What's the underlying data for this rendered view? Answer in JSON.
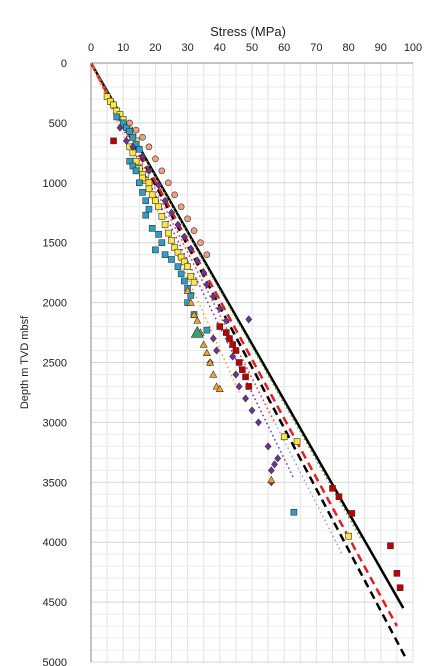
{
  "chart_data": {
    "type": "scatter",
    "xlabel": "Stress (MPa)",
    "ylabel": "Depth m TVD mbsf",
    "xlim": [
      0,
      100
    ],
    "ylim": [
      0,
      5000
    ],
    "y_inverted": true,
    "x_axis_position": "top",
    "x_ticks": [
      "0",
      "10",
      "20",
      "30",
      "40",
      "50",
      "60",
      "70",
      "80",
      "90",
      "100"
    ],
    "y_ticks": [
      "0",
      "500",
      "1000",
      "1500",
      "2000",
      "2500",
      "3000",
      "3500",
      "4000",
      "4500",
      "5000"
    ],
    "grid": true,
    "legend": "none",
    "lines": [
      {
        "style": "solid",
        "color": "#000000",
        "points": [
          [
            0,
            0
          ],
          [
            97,
            4550
          ]
        ]
      },
      {
        "style": "dashed",
        "color": "#000000",
        "points": [
          [
            0,
            0
          ],
          [
            98,
            4980
          ]
        ]
      },
      {
        "style": "dashed",
        "color": "#e02020",
        "points": [
          [
            0,
            0
          ],
          [
            95,
            4700
          ]
        ]
      },
      {
        "style": "dotted",
        "color": "#5aa02c",
        "points": [
          [
            0,
            0
          ],
          [
            84,
            3980
          ]
        ]
      },
      {
        "style": "dotted",
        "color": "#8ca8d8",
        "points": [
          [
            0,
            0
          ],
          [
            78,
            4100
          ]
        ]
      },
      {
        "style": "dotted",
        "color": "#7030a0",
        "points": [
          [
            0,
            0
          ],
          [
            63,
            3470
          ]
        ]
      },
      {
        "style": "dotted",
        "color": "#ff4040",
        "points": [
          [
            0,
            0
          ],
          [
            57,
            3000
          ]
        ]
      },
      {
        "style": "dotted",
        "color": "#f5a020",
        "points": [
          [
            0,
            0
          ],
          [
            46,
            2750
          ]
        ]
      }
    ],
    "series": [
      {
        "marker": "square",
        "color": "#ffe640",
        "points": [
          [
            5,
            280
          ],
          [
            6,
            320
          ],
          [
            7,
            350
          ],
          [
            8,
            400
          ],
          [
            9,
            430
          ],
          [
            10,
            470
          ],
          [
            11,
            520
          ],
          [
            12,
            560
          ],
          [
            13,
            600
          ],
          [
            14,
            650
          ],
          [
            12,
            700
          ],
          [
            13,
            750
          ],
          [
            14,
            820
          ],
          [
            15,
            880
          ],
          [
            16,
            930
          ],
          [
            17,
            980
          ],
          [
            18,
            1050
          ],
          [
            19,
            1100
          ],
          [
            20,
            1150
          ],
          [
            21,
            1200
          ],
          [
            22,
            1280
          ],
          [
            23,
            1350
          ],
          [
            24,
            1420
          ],
          [
            25,
            1480
          ],
          [
            26,
            1540
          ],
          [
            27,
            1580
          ],
          [
            28,
            1620
          ],
          [
            29,
            1660
          ],
          [
            30,
            1700
          ],
          [
            31,
            1780
          ],
          [
            32,
            1830
          ],
          [
            14,
            880
          ],
          [
            16,
            960
          ],
          [
            18,
            1000
          ],
          [
            60,
            3120
          ],
          [
            64,
            3160
          ],
          [
            80,
            3950
          ]
        ]
      },
      {
        "marker": "square",
        "color": "#2aa0c8",
        "points": [
          [
            8,
            450
          ],
          [
            10,
            500
          ],
          [
            11,
            540
          ],
          [
            12,
            570
          ],
          [
            13,
            620
          ],
          [
            14,
            680
          ],
          [
            15,
            720
          ],
          [
            12,
            820
          ],
          [
            13,
            860
          ],
          [
            14,
            900
          ],
          [
            15,
            1000
          ],
          [
            16,
            1080
          ],
          [
            17,
            1150
          ],
          [
            18,
            1220
          ],
          [
            17,
            1270
          ],
          [
            19,
            1380
          ],
          [
            21,
            1430
          ],
          [
            22,
            1500
          ],
          [
            20,
            1560
          ],
          [
            23,
            1600
          ],
          [
            25,
            1640
          ],
          [
            27,
            1700
          ],
          [
            28,
            1760
          ],
          [
            29,
            1820
          ],
          [
            30,
            1880
          ],
          [
            31,
            1940
          ],
          [
            30,
            2000
          ],
          [
            32,
            2100
          ],
          [
            36,
            2230
          ],
          [
            63,
            3750
          ]
        ]
      },
      {
        "marker": "square",
        "color": "#c00000",
        "points": [
          [
            7,
            650
          ],
          [
            40,
            2200
          ],
          [
            42,
            2250
          ],
          [
            43,
            2300
          ],
          [
            44,
            2350
          ],
          [
            45,
            2400
          ],
          [
            46,
            2500
          ],
          [
            47,
            2560
          ],
          [
            48,
            2620
          ],
          [
            49,
            2700
          ],
          [
            75,
            3550
          ],
          [
            77,
            3620
          ],
          [
            81,
            3760
          ],
          [
            93,
            4030
          ],
          [
            95,
            4260
          ],
          [
            96,
            4380
          ]
        ]
      },
      {
        "marker": "diamond",
        "color": "#7030a0",
        "points": [
          [
            9,
            540
          ],
          [
            11,
            650
          ],
          [
            13,
            700
          ],
          [
            16,
            780
          ],
          [
            18,
            900
          ],
          [
            21,
            1020
          ],
          [
            23,
            1150
          ],
          [
            25,
            1250
          ],
          [
            27,
            1350
          ],
          [
            29,
            1450
          ],
          [
            31,
            1550
          ],
          [
            33,
            1650
          ],
          [
            35,
            1750
          ],
          [
            36,
            1850
          ],
          [
            38,
            1950
          ],
          [
            40,
            2050
          ],
          [
            42,
            2150
          ],
          [
            38,
            2300
          ],
          [
            39,
            2400
          ],
          [
            37,
            2500
          ],
          [
            44,
            2450
          ],
          [
            45,
            2600
          ],
          [
            46,
            2700
          ],
          [
            48,
            2800
          ],
          [
            50,
            2900
          ],
          [
            52,
            3000
          ],
          [
            49,
            2140
          ],
          [
            55,
            3200
          ],
          [
            57,
            3350
          ],
          [
            56,
            3400
          ],
          [
            58,
            3300
          ],
          [
            56,
            3500
          ]
        ]
      },
      {
        "marker": "triangle",
        "color": "#f5a020",
        "points": [
          [
            30,
            1900
          ],
          [
            31,
            2000
          ],
          [
            32,
            2100
          ],
          [
            33,
            2150
          ],
          [
            34,
            2250
          ],
          [
            35,
            2350
          ],
          [
            36,
            2420
          ],
          [
            37,
            2500
          ],
          [
            38,
            2600
          ],
          [
            39,
            2700
          ],
          [
            40,
            2720
          ],
          [
            56,
            3480
          ]
        ]
      },
      {
        "marker": "triangle",
        "color": "#3aa070",
        "points": [
          [
            33,
            2250
          ]
        ]
      },
      {
        "marker": "circle",
        "color": "#f0a080",
        "points": [
          [
            12,
            500
          ],
          [
            14,
            560
          ],
          [
            16,
            620
          ],
          [
            18,
            700
          ],
          [
            20,
            800
          ],
          [
            22,
            900
          ],
          [
            24,
            1000
          ],
          [
            26,
            1100
          ],
          [
            28,
            1200
          ],
          [
            30,
            1300
          ],
          [
            32,
            1400
          ],
          [
            34,
            1500
          ],
          [
            36,
            1600
          ]
        ]
      }
    ]
  }
}
